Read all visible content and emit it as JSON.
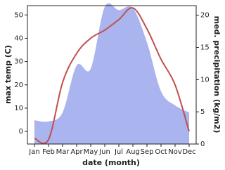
{
  "chart_data": {
    "type": "area-line",
    "x_label": "date (month)",
    "y_label": "max temp (C)",
    "y2_label": "med. precipitation (kg/m2)",
    "categories": [
      "Jan",
      "Feb",
      "Mar",
      "Apr",
      "May",
      "Jun",
      "Jul",
      "Aug",
      "Sep",
      "Oct",
      "Nov",
      "Dec"
    ],
    "series": [
      {
        "name": "med. precipitation (kg/m2)",
        "type": "area",
        "axis": "y2",
        "color": "#aab4ee",
        "values": [
          3.7,
          3.5,
          4.9,
          12.2,
          11.7,
          21.3,
          20.8,
          21.1,
          15.8,
          8.2,
          6,
          4.9
        ]
      },
      {
        "name": "max temp (C)",
        "type": "line",
        "color": "#c0504d",
        "values": [
          -3,
          -3.5,
          21,
          33.5,
          40,
          43.5,
          48,
          53,
          44,
          31,
          20,
          0
        ]
      }
    ],
    "ylim": [
      -5.4,
      54
    ],
    "yticks": [
      0,
      10,
      20,
      30,
      40,
      50
    ],
    "y2lim": [
      0,
      21.5
    ],
    "y2ticks": [
      0,
      5,
      10,
      15,
      20
    ]
  }
}
